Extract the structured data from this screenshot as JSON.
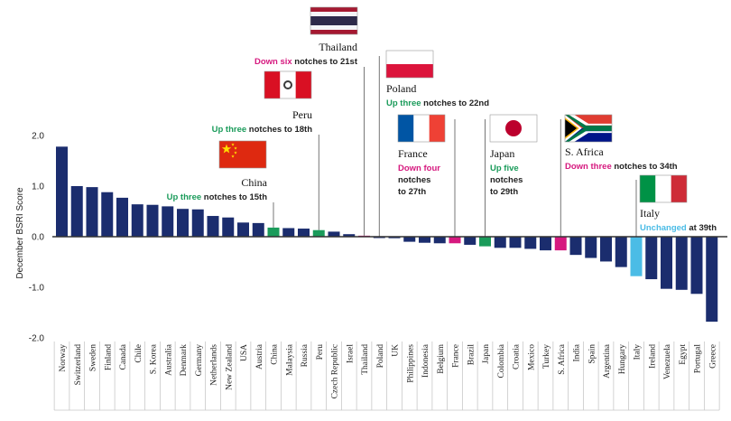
{
  "chart_data": {
    "type": "bar",
    "ylabel": "December BSRI Score",
    "ylim": [
      -2.0,
      2.0
    ],
    "yticks": [
      "2.0",
      "1.0",
      "0.0",
      "-1.0",
      "-2.0"
    ],
    "ytick_values": [
      2.0,
      1.0,
      0.0,
      -1.0,
      -2.0
    ],
    "grid": false,
    "categories": [
      "Norway",
      "Switzerland",
      "Sweden",
      "Finland",
      "Canada",
      "Chile",
      "S. Korea",
      "Australia",
      "Denmark",
      "Germany",
      "Netherlands",
      "New Zealand",
      "USA",
      "Austria",
      "China",
      "Malaysia",
      "Russia",
      "Peru",
      "Czech Republic",
      "Israel",
      "Thailand",
      "Poland",
      "UK",
      "Philippines",
      "Indonesia",
      "Belgium",
      "France",
      "Brazil",
      "Japan",
      "Colombia",
      "Croatia",
      "Mexico",
      "Turkey",
      "S. Africa",
      "India",
      "Spain",
      "Argentina",
      "Hungary",
      "Italy",
      "Ireland",
      "Venezuela",
      "Egypt",
      "Portugal",
      "Greece"
    ],
    "values": [
      1.78,
      1.0,
      0.98,
      0.88,
      0.77,
      0.64,
      0.63,
      0.6,
      0.55,
      0.54,
      0.41,
      0.38,
      0.28,
      0.27,
      0.18,
      0.17,
      0.16,
      0.13,
      0.1,
      0.05,
      0.02,
      -0.02,
      -0.03,
      -0.1,
      -0.12,
      -0.13,
      -0.13,
      -0.16,
      -0.19,
      -0.22,
      -0.22,
      -0.24,
      -0.27,
      -0.27,
      -0.36,
      -0.42,
      -0.49,
      -0.6,
      -0.78,
      -0.84,
      -1.03,
      -1.05,
      -1.13,
      -1.68
    ],
    "highlight_colors": {
      "Thailand": "#d6197f",
      "Peru": "#1a9b5a",
      "China": "#1a9b5a",
      "France": "#d6197f",
      "Japan": "#1a9b5a",
      "S. Africa": "#d6197f",
      "Italy": "#4bbce6"
    },
    "default_color": "#1b2d6e",
    "annotations": [
      {
        "country": "Thailand",
        "label": "Thailand",
        "lines": [
          [
            {
              "t": "Down six",
              "c": "#d6197f"
            },
            {
              "t": " notches to 21st",
              "c": "#222222"
            }
          ]
        ],
        "flag": "thailand"
      },
      {
        "country": "Peru",
        "label": "Peru",
        "lines": [
          [
            {
              "t": "Up three",
              "c": "#1a9b5a"
            },
            {
              "t": " notches to 18th",
              "c": "#222222"
            }
          ]
        ],
        "flag": "peru"
      },
      {
        "country": "China",
        "label": "China",
        "lines": [
          [
            {
              "t": "Up three",
              "c": "#1a9b5a"
            },
            {
              "t": " notches to 15th",
              "c": "#222222"
            }
          ]
        ],
        "flag": "china"
      },
      {
        "country": "Poland",
        "label": "Poland",
        "lines": [
          [
            {
              "t": "Up three",
              "c": "#1a9b5a"
            },
            {
              "t": " notches to 22nd",
              "c": "#222222"
            }
          ]
        ],
        "flag": "poland"
      },
      {
        "country": "France",
        "label": "France",
        "lines": [
          [
            {
              "t": "Down four",
              "c": "#d6197f"
            }
          ],
          [
            {
              "t": "notches",
              "c": "#222222"
            }
          ],
          [
            {
              "t": "to 27th",
              "c": "#222222"
            }
          ]
        ],
        "flag": "france"
      },
      {
        "country": "Japan",
        "label": "Japan",
        "lines": [
          [
            {
              "t": "Up five",
              "c": "#1a9b5a"
            }
          ],
          [
            {
              "t": "notches",
              "c": "#222222"
            }
          ],
          [
            {
              "t": "to 29th",
              "c": "#222222"
            }
          ]
        ],
        "flag": "japan"
      },
      {
        "country": "S. Africa",
        "label": "S. Africa",
        "lines": [
          [
            {
              "t": "Down three",
              "c": "#d6197f"
            },
            {
              "t": " notches to 34th",
              "c": "#222222"
            }
          ]
        ],
        "flag": "south-africa"
      },
      {
        "country": "Italy",
        "label": "Italy",
        "lines": [
          [
            {
              "t": "Unchanged",
              "c": "#4bbce6"
            },
            {
              "t": " at 39th",
              "c": "#222222"
            }
          ]
        ],
        "flag": "italy"
      }
    ]
  }
}
